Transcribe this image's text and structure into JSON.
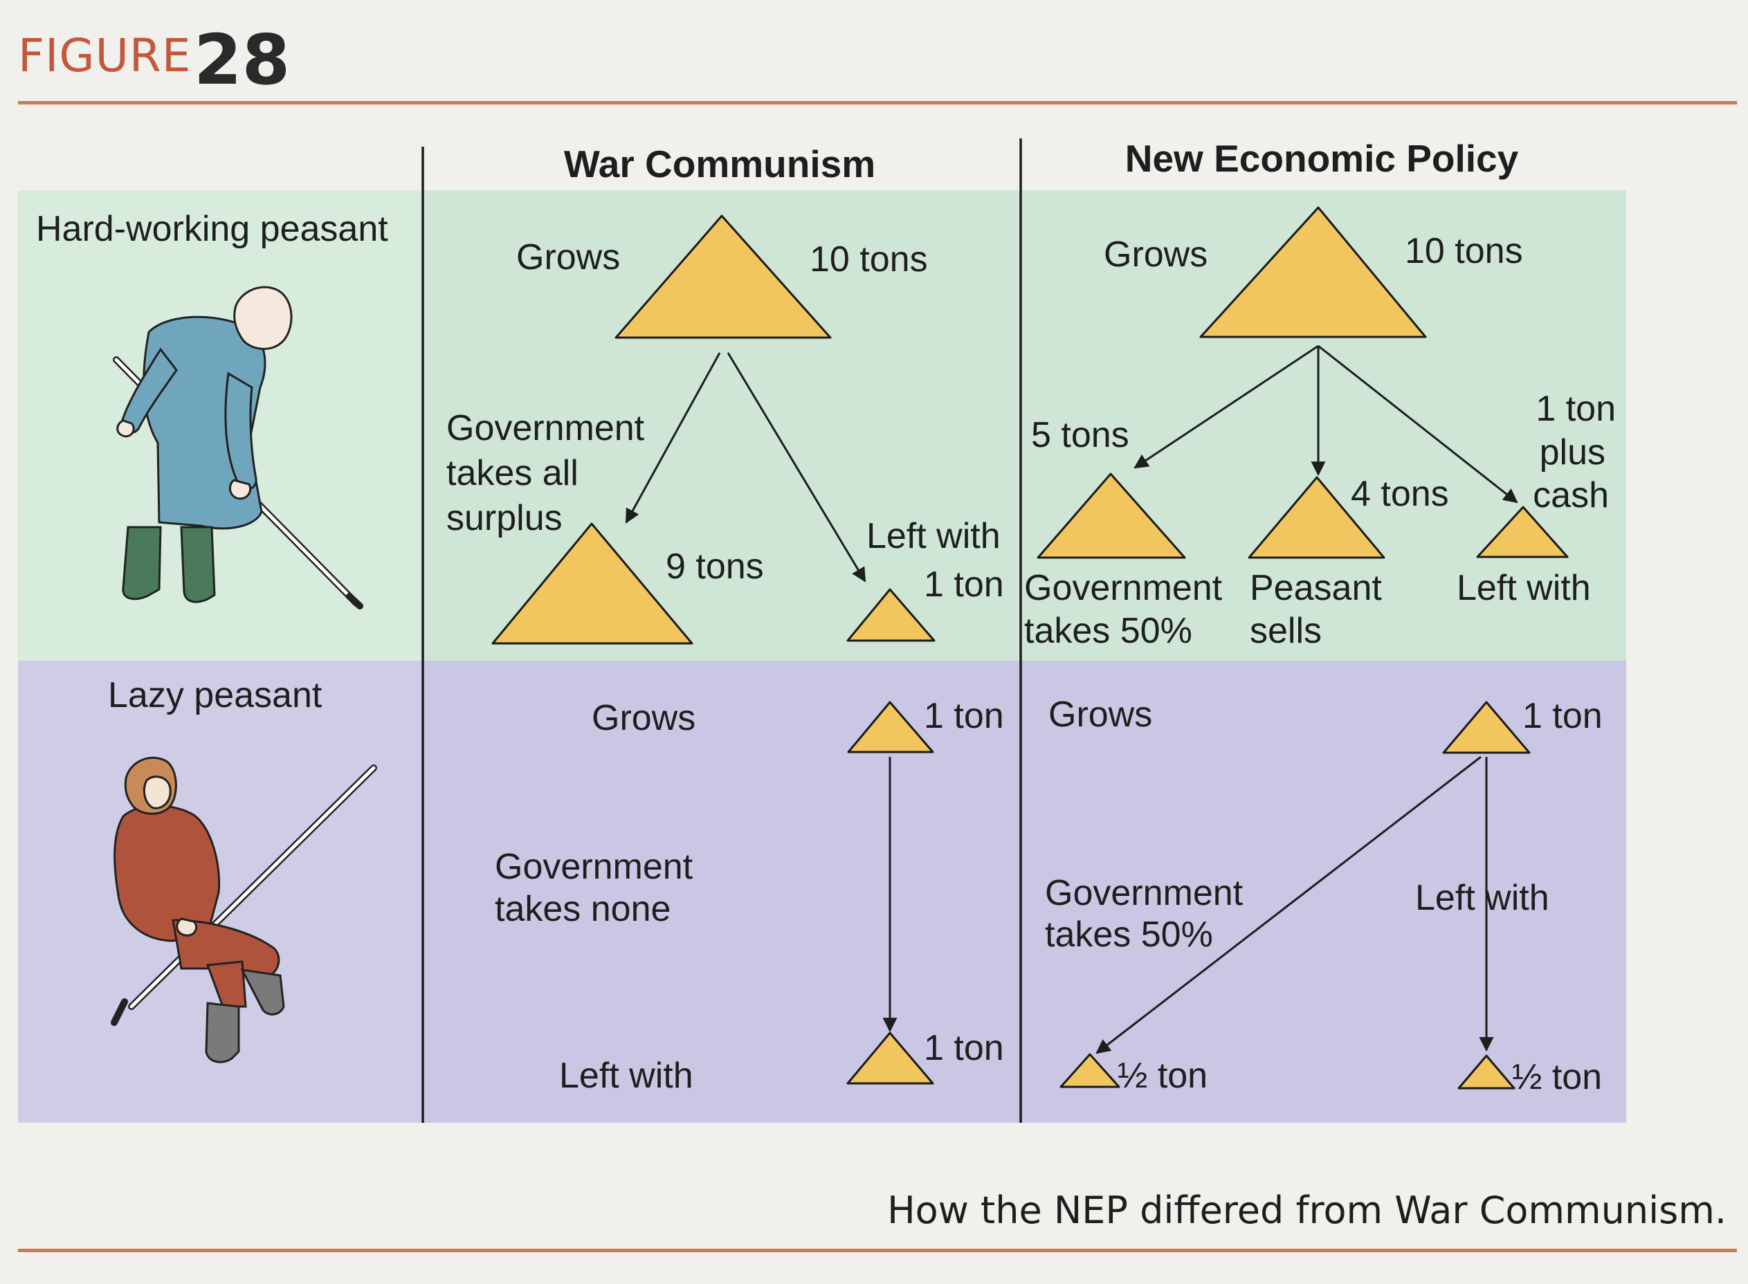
{
  "figure": {
    "label": "FIGURE",
    "number": "28"
  },
  "columns": {
    "war_communism": "War Communism",
    "nep": "New Economic Policy"
  },
  "rows": {
    "hard_working": "Hard-working peasant",
    "lazy": "Lazy peasant"
  },
  "wc_hard": {
    "grows_label": "Grows",
    "grows_amount": "10 tons",
    "gov_line1": "Government",
    "gov_line2": "takes all",
    "gov_line3": "surplus",
    "gov_amount": "9 tons",
    "left_label": "Left with",
    "left_amount": "1 ton"
  },
  "wc_lazy": {
    "grows_label": "Grows",
    "grows_amount": "1 ton",
    "gov_line1": "Government",
    "gov_line2": "takes none",
    "left_label": "Left with",
    "left_amount": "1 ton"
  },
  "nep_hard": {
    "grows_label": "Grows",
    "grows_amount": "10 tons",
    "gov_amount": "5 tons",
    "gov_line1": "Government",
    "gov_line2": "takes 50%",
    "sells_amount": "4 tons",
    "sells_line1": "Peasant",
    "sells_line2": "sells",
    "left_line1": "1 ton",
    "left_line2": "plus",
    "left_line3": "cash",
    "left_label": "Left with"
  },
  "nep_lazy": {
    "grows_label": "Grows",
    "grows_amount": "1 ton",
    "gov_line1": "Government",
    "gov_line2": "takes 50%",
    "gov_amount": "½ ton",
    "left_label": "Left with",
    "left_amount": "½ ton"
  },
  "caption": "How the NEP differed from War Communism.",
  "colors": {
    "header_red": "#c1593a",
    "rule": "#c97a55",
    "hard_band": "#cfe6d7",
    "lazy_band": "#c9c7e3",
    "grain": "#f2c65e"
  },
  "icons": [
    "hard-working-peasant-illustration",
    "lazy-peasant-illustration",
    "grain-pile-icon",
    "arrow-icon"
  ]
}
